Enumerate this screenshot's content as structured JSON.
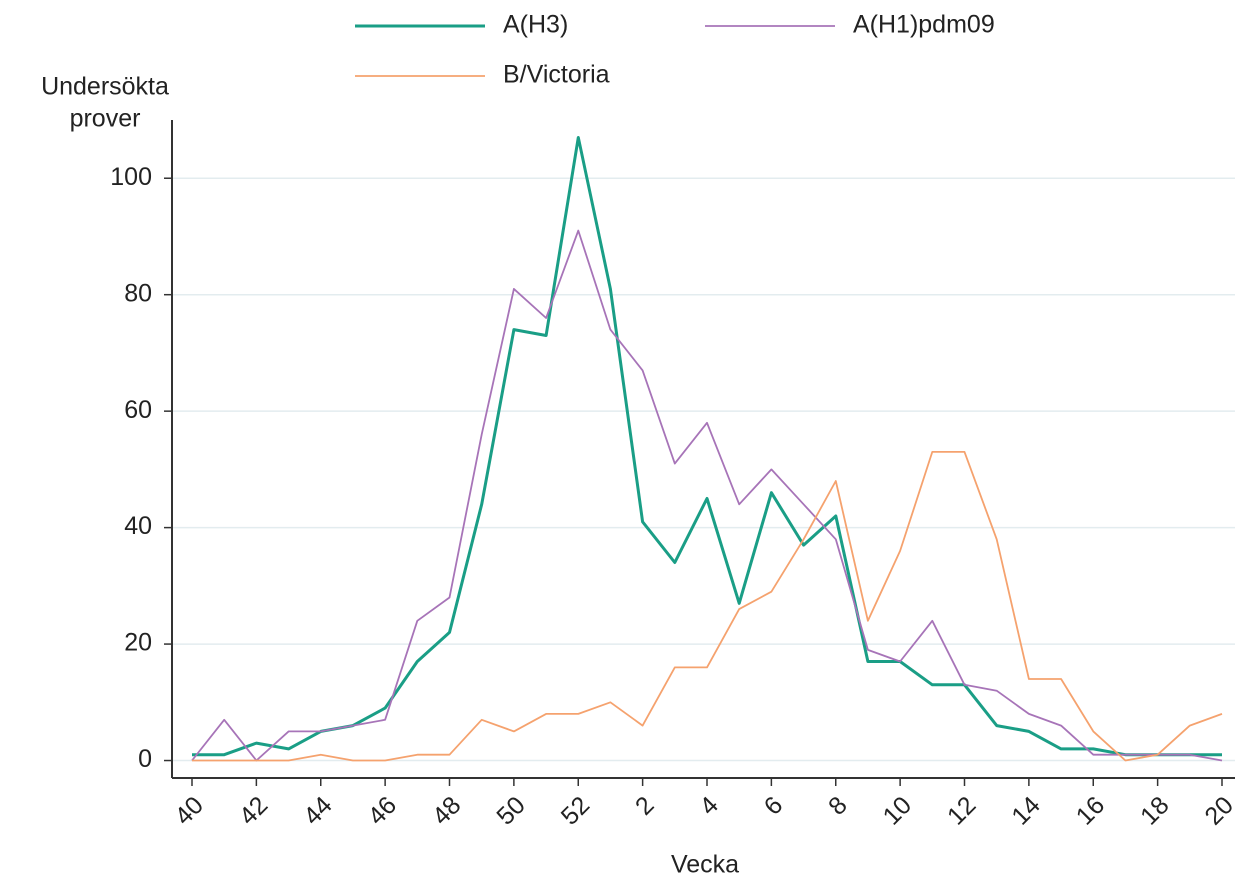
{
  "chart_data": {
    "type": "line",
    "y_label": [
      "Undersökta",
      "prover"
    ],
    "x_label": "Vecka",
    "categories": [
      "40",
      null,
      "42",
      null,
      "44",
      null,
      "46",
      null,
      "48",
      null,
      "50",
      null,
      "52",
      null,
      "2",
      null,
      "4",
      null,
      "6",
      null,
      "8",
      null,
      "10",
      null,
      "12",
      null,
      "14",
      null,
      "16",
      null,
      "18",
      null,
      "20"
    ],
    "series": [
      {
        "name": "A(H3)",
        "color": "#1a9e86",
        "values": [
          1,
          1,
          3,
          2,
          5,
          6,
          9,
          17,
          22,
          44,
          74,
          73,
          107,
          81,
          41,
          34,
          45,
          27,
          46,
          37,
          42,
          17,
          17,
          13,
          13,
          6,
          5,
          2,
          2,
          1,
          1,
          1,
          1
        ]
      },
      {
        "name": "A(H1)pdm09",
        "color": "#a774b8",
        "values": [
          0,
          7,
          0,
          5,
          5,
          6,
          7,
          24,
          28,
          56,
          81,
          76,
          91,
          74,
          67,
          51,
          58,
          44,
          50,
          44,
          38,
          19,
          17,
          24,
          13,
          12,
          8,
          6,
          1,
          1,
          1,
          1,
          0
        ]
      },
      {
        "name": "B/Victoria",
        "color": "#f5a26e",
        "values": [
          0,
          0,
          0,
          0,
          1,
          0,
          0,
          1,
          1,
          7,
          5,
          8,
          8,
          10,
          6,
          16,
          16,
          26,
          29,
          38,
          48,
          24,
          36,
          53,
          53,
          38,
          14,
          14,
          5,
          0,
          1,
          6,
          8
        ]
      }
    ],
    "ylim": [
      -3,
      110
    ],
    "yticks": [
      0,
      20,
      40,
      60,
      80,
      100
    ],
    "grid": true,
    "legend": "top"
  }
}
